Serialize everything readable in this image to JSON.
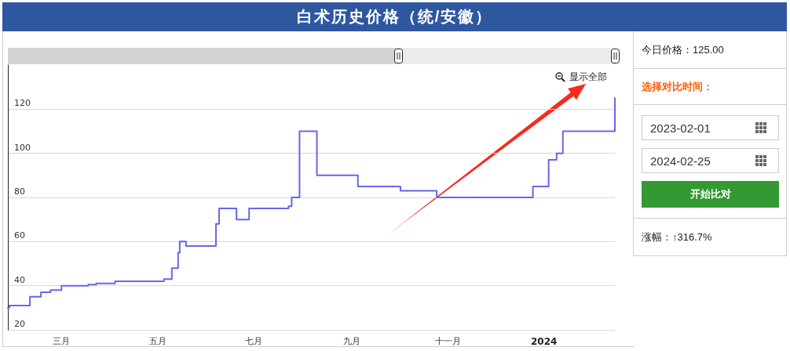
{
  "chart_data": {
    "type": "step",
    "title": "白术历史价格（统/安徽）",
    "categories": [
      null,
      null,
      null,
      null,
      null,
      null,
      null,
      null,
      null,
      null,
      null,
      null,
      null,
      null,
      null,
      null,
      null,
      null,
      null,
      null,
      null,
      null,
      null,
      null,
      null,
      null,
      null,
      null,
      null,
      null,
      null,
      null,
      null,
      null,
      "三月",
      null,
      null,
      null,
      null,
      null,
      null,
      null,
      null,
      null,
      null,
      null,
      null,
      null,
      null,
      null,
      null,
      null,
      null,
      null,
      null,
      null,
      null,
      null,
      null,
      null,
      null,
      null,
      null,
      null,
      null,
      null,
      null,
      null,
      null,
      null,
      null,
      null,
      null,
      null,
      null,
      null,
      null,
      null,
      null,
      null,
      null,
      null,
      null,
      null,
      null,
      null,
      null,
      null,
      null,
      null,
      null,
      null,
      null,
      null,
      null,
      "五月",
      null,
      null,
      null,
      null,
      null,
      null,
      null,
      null,
      null,
      null,
      null,
      null,
      null,
      null,
      null,
      null,
      null,
      null,
      null,
      null,
      null,
      null,
      null,
      null,
      null,
      null,
      null,
      null,
      null,
      null,
      null,
      null,
      null,
      null,
      null,
      null,
      null,
      null,
      null,
      null,
      null,
      null,
      null,
      null,
      null,
      null,
      null,
      null,
      null,
      null,
      null,
      null,
      null,
      null,
      null,
      null,
      null,
      null,
      null,
      null,
      "七月",
      null,
      null,
      null,
      null,
      null,
      null,
      null,
      null,
      null,
      null,
      null,
      null,
      null,
      null,
      null,
      null,
      null,
      null,
      null,
      null,
      null,
      null,
      null,
      null,
      null,
      null,
      null,
      null,
      null,
      null,
      null,
      null,
      null,
      null,
      null,
      null,
      null,
      null,
      null,
      null,
      null,
      null,
      null,
      null,
      null,
      null,
      null,
      null,
      null,
      null,
      null,
      null,
      null,
      null,
      null,
      null,
      null,
      null,
      null,
      null,
      null,
      "九月",
      null,
      null,
      null,
      null,
      null,
      null,
      null,
      null,
      null,
      null,
      null,
      null,
      null,
      null,
      null,
      null,
      null,
      null,
      null,
      null,
      null,
      null,
      null,
      null,
      null,
      null,
      null,
      null,
      null,
      null,
      null,
      null,
      null,
      null,
      null,
      null,
      null,
      null,
      null,
      null,
      null,
      null,
      null,
      null,
      null,
      null,
      null,
      null,
      null,
      null,
      null,
      null,
      null,
      null,
      null,
      null,
      null,
      null,
      null,
      null,
      "十一月",
      null,
      null,
      null,
      null,
      null,
      null,
      null,
      null,
      null,
      null,
      null,
      null,
      null,
      null,
      null,
      null,
      null,
      null,
      null,
      null,
      null,
      null,
      null,
      null,
      null,
      null,
      null,
      null,
      null,
      null,
      null,
      null,
      null,
      null,
      null,
      null,
      null,
      null,
      null,
      null,
      null,
      null,
      null,
      null,
      null,
      null,
      null,
      null,
      null,
      null,
      null,
      null,
      null,
      null,
      null,
      null,
      null,
      null,
      null,
      null,
      "2024",
      null,
      null,
      null,
      null,
      null,
      null,
      null,
      null,
      null,
      null,
      null,
      null,
      null,
      null,
      null,
      null,
      null,
      null,
      null,
      null,
      null,
      null,
      null,
      null,
      null,
      null,
      null,
      null,
      null,
      null,
      null,
      null,
      null,
      null,
      null,
      null,
      null,
      null,
      null,
      null,
      null,
      null,
      null,
      null,
      null
    ],
    "values": [
      30,
      31,
      31,
      31,
      31,
      31,
      31,
      31,
      31,
      31,
      31,
      31,
      31,
      31,
      35,
      35,
      35,
      35,
      35,
      35,
      35,
      37,
      37,
      37,
      37,
      37,
      37,
      38,
      38,
      38,
      38,
      38,
      38,
      38,
      40,
      40,
      40,
      40,
      40,
      40,
      40,
      40,
      40,
      40,
      40,
      40,
      40,
      40,
      40,
      40,
      40,
      40.5,
      40.5,
      40.5,
      40.5,
      40.5,
      41,
      41,
      41,
      41,
      41,
      41,
      41,
      41,
      41,
      41,
      41,
      41,
      42,
      42,
      42,
      42,
      42,
      42,
      42,
      42,
      42,
      42,
      42,
      42,
      42,
      42,
      42,
      42,
      42,
      42,
      42,
      42,
      42,
      42,
      42,
      42,
      42,
      42,
      42,
      42,
      42,
      42,
      42,
      43,
      43,
      43,
      43,
      43,
      48,
      48,
      48,
      48,
      55,
      60,
      60,
      60,
      60,
      58,
      58,
      58,
      58,
      58,
      58,
      58,
      58,
      58,
      58,
      58,
      58,
      58,
      58,
      58,
      58,
      58,
      58,
      58,
      68,
      68,
      75,
      75,
      75,
      75,
      75,
      75,
      75,
      75,
      75,
      75,
      75,
      70,
      70,
      70,
      70,
      70,
      70,
      70,
      70,
      75,
      75,
      75,
      75,
      75,
      75,
      75,
      75,
      75,
      75,
      75,
      75,
      75,
      75,
      75,
      75,
      75,
      75,
      75,
      75,
      75,
      75,
      75,
      75,
      75,
      76,
      76,
      80,
      80,
      80,
      80,
      80,
      110,
      110,
      110,
      110,
      110,
      110,
      110,
      110,
      110,
      110,
      110,
      90,
      90,
      90,
      90,
      90,
      90,
      90,
      90,
      90,
      90,
      90,
      90,
      90,
      90,
      90,
      90,
      90,
      90,
      90,
      90,
      90,
      90,
      90,
      90,
      90,
      90,
      85,
      85,
      85,
      85,
      85,
      85,
      85,
      85,
      85,
      85,
      85,
      85,
      85,
      85,
      85,
      85,
      85,
      85,
      85,
      85,
      85,
      85,
      85,
      85,
      85,
      85,
      85,
      83,
      83,
      83,
      83,
      83,
      83,
      83,
      83,
      83,
      83,
      83,
      83,
      83,
      83,
      83,
      83,
      83,
      83,
      83,
      83,
      83,
      83,
      83,
      80,
      80,
      80,
      80,
      80,
      80,
      80,
      80,
      80,
      80,
      80,
      80,
      80,
      80,
      80,
      80,
      80,
      80,
      80,
      80,
      80,
      80,
      80,
      80,
      80,
      80,
      80,
      80,
      80,
      80,
      80,
      80,
      80,
      80,
      80,
      80,
      80,
      80,
      80,
      80,
      80,
      80,
      80,
      80,
      80,
      80,
      80,
      80,
      80,
      80,
      80,
      80,
      80,
      80,
      80,
      80,
      80,
      80,
      80,
      80,
      80,
      85,
      85,
      85,
      85,
      85,
      85,
      85,
      85,
      85,
      85,
      97,
      97,
      97,
      97,
      97,
      100,
      100,
      100,
      100,
      110,
      110,
      110,
      110,
      110,
      110,
      110,
      110,
      110,
      110,
      110,
      110,
      110,
      110,
      110,
      110,
      110,
      110,
      110,
      110,
      110,
      110,
      110,
      110,
      110,
      110,
      110,
      110,
      110,
      110,
      110,
      110,
      110,
      125
    ],
    "color": "#6666ee",
    "ylim": [
      20,
      140
    ],
    "yticks": [
      20,
      40,
      60,
      80,
      100,
      120
    ],
    "grid": "y",
    "annotations": [
      "今日价格：125.00",
      "选择对比时间：",
      "2023-02-01",
      "2024-02-25",
      "开始比对",
      "涨幅：↑316.7%",
      "显示全部"
    ]
  }
}
